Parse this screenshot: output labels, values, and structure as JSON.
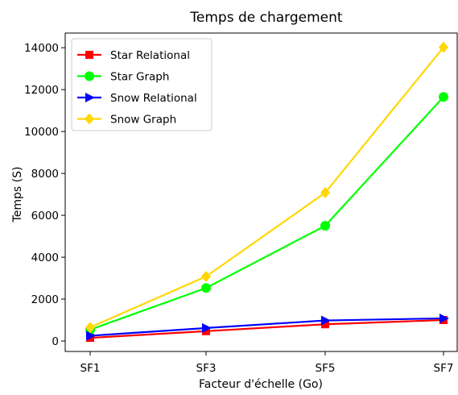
{
  "chart_data": {
    "type": "line",
    "title": "Temps de chargement",
    "xlabel": "Facteur d'échelle (Go)",
    "ylabel": "Temps (S)",
    "categories": [
      "SF1",
      "SF3",
      "SF5",
      "SF7"
    ],
    "yticks": [
      0,
      2000,
      4000,
      6000,
      8000,
      10000,
      12000,
      14000
    ],
    "ylim": [
      -500,
      14700
    ],
    "grid": false,
    "legend_position": "top-left",
    "series": [
      {
        "name": "Star Relational",
        "color": "#ff0000",
        "marker": "square",
        "values": [
          150,
          470,
          800,
          1000
        ]
      },
      {
        "name": "Star Graph",
        "color": "#00ff00",
        "marker": "circle",
        "values": [
          540,
          2530,
          5500,
          11650
        ]
      },
      {
        "name": "Snow Relational",
        "color": "#0000ff",
        "marker": "triangle-right",
        "values": [
          250,
          620,
          980,
          1080
        ]
      },
      {
        "name": "Snow Graph",
        "color": "#ffd700",
        "marker": "diamond",
        "values": [
          650,
          3080,
          7080,
          14020
        ]
      }
    ]
  }
}
